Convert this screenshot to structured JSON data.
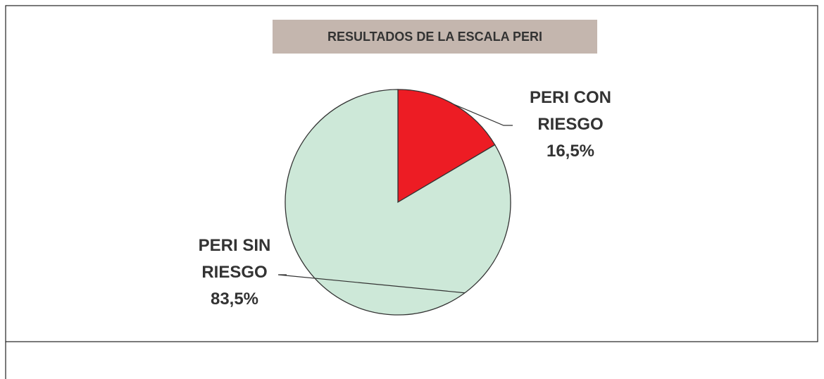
{
  "chart_data": {
    "type": "pie",
    "title": "RESULTADOS DE LA ESCALA PERI",
    "categories": [
      "PERI CON RIESGO",
      "PERI SIN RIESGO"
    ],
    "values": [
      16.5,
      83.5
    ],
    "value_labels": [
      "16,5%",
      "83,5%"
    ],
    "colors": [
      "#ed1c24",
      "#cde8d8"
    ]
  }
}
